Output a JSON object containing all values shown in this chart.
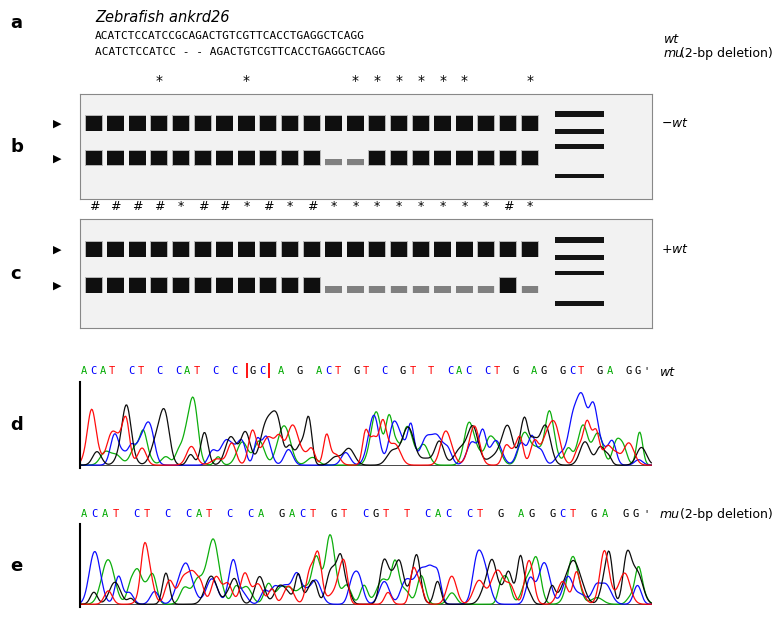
{
  "title": "Zebrafish ankrd26",
  "seq_wt": "ACATCTCCATCCGCAGACTGTCGTTCACCTGAGGCTCAGG",
  "seq_mu": "ACATCTCCATCC - - AGACTGTCGTTCACCTGAGGCTCAGG",
  "label_wt_italic": "wt",
  "label_mu_italic": "mu",
  "label_mu_normal": " (2-bp deletion)",
  "minus_wt": "-wt",
  "plus_wt": "+wt",
  "n_lanes": 21,
  "stars_b": [
    3,
    7,
    12,
    13,
    14,
    15,
    16,
    17,
    20
  ],
  "hashes_c": [
    0,
    1,
    2,
    3,
    5,
    6,
    8,
    10,
    19
  ],
  "stars_c": [
    4,
    7,
    9,
    11,
    12,
    13,
    14,
    15,
    16,
    20
  ],
  "b_upper_all": true,
  "b_lower_lanes": [
    0,
    1,
    2,
    3,
    4,
    5,
    6,
    7,
    8,
    9,
    10,
    13,
    14,
    15,
    16,
    17,
    18,
    19,
    20
  ],
  "b_faint_lanes": [
    11,
    12
  ],
  "c_upper_all": true,
  "c_lower_lanes_dark": [
    0,
    1,
    2,
    3,
    4,
    5,
    6,
    7,
    8,
    9,
    10,
    19
  ],
  "c_lower_lanes_faint": [
    11,
    12,
    13,
    14,
    15,
    16,
    17,
    18,
    20
  ],
  "chromo_d_seq": "ACAT CT C CAT C C GC A G ACT GT C GT T CAC CT G AG GCT GA GG'",
  "chromo_e_seq": "ACAT CT C CAT C CA GACT GT CGT T CAC CT G AG GCT GA GG'",
  "gc_box_prefix": "ACAT CT C CAT C C ",
  "seq_colors": {
    "A": "#00aa00",
    "C": "#0000ff",
    "G": "#000000",
    "T": "#ff0000"
  },
  "fig_width": 7.53,
  "fig_height": 7.02,
  "bg_color": "#ffffff"
}
